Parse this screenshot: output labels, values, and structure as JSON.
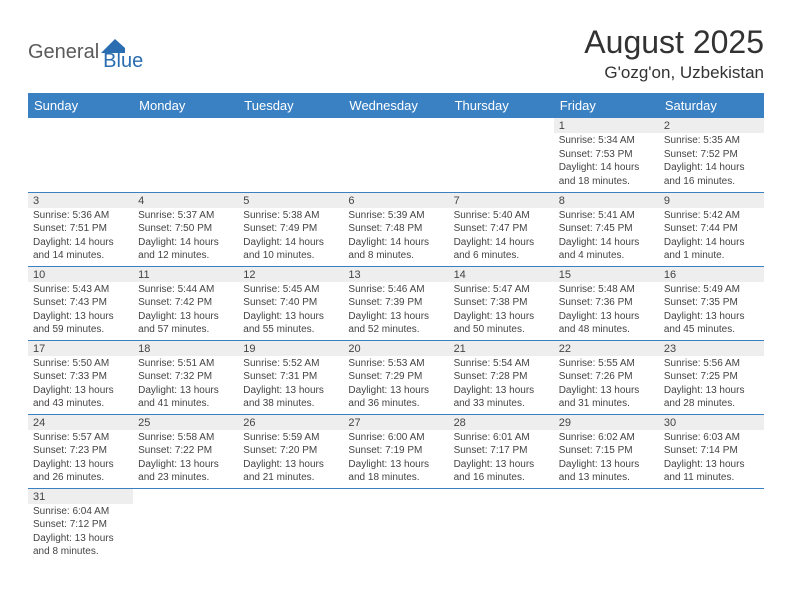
{
  "logo": {
    "text1": "General",
    "text2": "Blue"
  },
  "title": "August 2025",
  "location": "G'ozg'on, Uzbekistan",
  "colors": {
    "header_bg": "#3a81c4",
    "header_text": "#ffffff",
    "daynum_bg": "#eeeeee",
    "border": "#3a81c4",
    "logo_blue": "#2a6db0"
  },
  "weekdays": [
    "Sunday",
    "Monday",
    "Tuesday",
    "Wednesday",
    "Thursday",
    "Friday",
    "Saturday"
  ],
  "weeks": [
    [
      null,
      null,
      null,
      null,
      null,
      {
        "n": "1",
        "sunrise": "Sunrise: 5:34 AM",
        "sunset": "Sunset: 7:53 PM",
        "daylight": "Daylight: 14 hours and 18 minutes."
      },
      {
        "n": "2",
        "sunrise": "Sunrise: 5:35 AM",
        "sunset": "Sunset: 7:52 PM",
        "daylight": "Daylight: 14 hours and 16 minutes."
      }
    ],
    [
      {
        "n": "3",
        "sunrise": "Sunrise: 5:36 AM",
        "sunset": "Sunset: 7:51 PM",
        "daylight": "Daylight: 14 hours and 14 minutes."
      },
      {
        "n": "4",
        "sunrise": "Sunrise: 5:37 AM",
        "sunset": "Sunset: 7:50 PM",
        "daylight": "Daylight: 14 hours and 12 minutes."
      },
      {
        "n": "5",
        "sunrise": "Sunrise: 5:38 AM",
        "sunset": "Sunset: 7:49 PM",
        "daylight": "Daylight: 14 hours and 10 minutes."
      },
      {
        "n": "6",
        "sunrise": "Sunrise: 5:39 AM",
        "sunset": "Sunset: 7:48 PM",
        "daylight": "Daylight: 14 hours and 8 minutes."
      },
      {
        "n": "7",
        "sunrise": "Sunrise: 5:40 AM",
        "sunset": "Sunset: 7:47 PM",
        "daylight": "Daylight: 14 hours and 6 minutes."
      },
      {
        "n": "8",
        "sunrise": "Sunrise: 5:41 AM",
        "sunset": "Sunset: 7:45 PM",
        "daylight": "Daylight: 14 hours and 4 minutes."
      },
      {
        "n": "9",
        "sunrise": "Sunrise: 5:42 AM",
        "sunset": "Sunset: 7:44 PM",
        "daylight": "Daylight: 14 hours and 1 minute."
      }
    ],
    [
      {
        "n": "10",
        "sunrise": "Sunrise: 5:43 AM",
        "sunset": "Sunset: 7:43 PM",
        "daylight": "Daylight: 13 hours and 59 minutes."
      },
      {
        "n": "11",
        "sunrise": "Sunrise: 5:44 AM",
        "sunset": "Sunset: 7:42 PM",
        "daylight": "Daylight: 13 hours and 57 minutes."
      },
      {
        "n": "12",
        "sunrise": "Sunrise: 5:45 AM",
        "sunset": "Sunset: 7:40 PM",
        "daylight": "Daylight: 13 hours and 55 minutes."
      },
      {
        "n": "13",
        "sunrise": "Sunrise: 5:46 AM",
        "sunset": "Sunset: 7:39 PM",
        "daylight": "Daylight: 13 hours and 52 minutes."
      },
      {
        "n": "14",
        "sunrise": "Sunrise: 5:47 AM",
        "sunset": "Sunset: 7:38 PM",
        "daylight": "Daylight: 13 hours and 50 minutes."
      },
      {
        "n": "15",
        "sunrise": "Sunrise: 5:48 AM",
        "sunset": "Sunset: 7:36 PM",
        "daylight": "Daylight: 13 hours and 48 minutes."
      },
      {
        "n": "16",
        "sunrise": "Sunrise: 5:49 AM",
        "sunset": "Sunset: 7:35 PM",
        "daylight": "Daylight: 13 hours and 45 minutes."
      }
    ],
    [
      {
        "n": "17",
        "sunrise": "Sunrise: 5:50 AM",
        "sunset": "Sunset: 7:33 PM",
        "daylight": "Daylight: 13 hours and 43 minutes."
      },
      {
        "n": "18",
        "sunrise": "Sunrise: 5:51 AM",
        "sunset": "Sunset: 7:32 PM",
        "daylight": "Daylight: 13 hours and 41 minutes."
      },
      {
        "n": "19",
        "sunrise": "Sunrise: 5:52 AM",
        "sunset": "Sunset: 7:31 PM",
        "daylight": "Daylight: 13 hours and 38 minutes."
      },
      {
        "n": "20",
        "sunrise": "Sunrise: 5:53 AM",
        "sunset": "Sunset: 7:29 PM",
        "daylight": "Daylight: 13 hours and 36 minutes."
      },
      {
        "n": "21",
        "sunrise": "Sunrise: 5:54 AM",
        "sunset": "Sunset: 7:28 PM",
        "daylight": "Daylight: 13 hours and 33 minutes."
      },
      {
        "n": "22",
        "sunrise": "Sunrise: 5:55 AM",
        "sunset": "Sunset: 7:26 PM",
        "daylight": "Daylight: 13 hours and 31 minutes."
      },
      {
        "n": "23",
        "sunrise": "Sunrise: 5:56 AM",
        "sunset": "Sunset: 7:25 PM",
        "daylight": "Daylight: 13 hours and 28 minutes."
      }
    ],
    [
      {
        "n": "24",
        "sunrise": "Sunrise: 5:57 AM",
        "sunset": "Sunset: 7:23 PM",
        "daylight": "Daylight: 13 hours and 26 minutes."
      },
      {
        "n": "25",
        "sunrise": "Sunrise: 5:58 AM",
        "sunset": "Sunset: 7:22 PM",
        "daylight": "Daylight: 13 hours and 23 minutes."
      },
      {
        "n": "26",
        "sunrise": "Sunrise: 5:59 AM",
        "sunset": "Sunset: 7:20 PM",
        "daylight": "Daylight: 13 hours and 21 minutes."
      },
      {
        "n": "27",
        "sunrise": "Sunrise: 6:00 AM",
        "sunset": "Sunset: 7:19 PM",
        "daylight": "Daylight: 13 hours and 18 minutes."
      },
      {
        "n": "28",
        "sunrise": "Sunrise: 6:01 AM",
        "sunset": "Sunset: 7:17 PM",
        "daylight": "Daylight: 13 hours and 16 minutes."
      },
      {
        "n": "29",
        "sunrise": "Sunrise: 6:02 AM",
        "sunset": "Sunset: 7:15 PM",
        "daylight": "Daylight: 13 hours and 13 minutes."
      },
      {
        "n": "30",
        "sunrise": "Sunrise: 6:03 AM",
        "sunset": "Sunset: 7:14 PM",
        "daylight": "Daylight: 13 hours and 11 minutes."
      }
    ],
    [
      {
        "n": "31",
        "sunrise": "Sunrise: 6:04 AM",
        "sunset": "Sunset: 7:12 PM",
        "daylight": "Daylight: 13 hours and 8 minutes."
      },
      null,
      null,
      null,
      null,
      null,
      null
    ]
  ]
}
